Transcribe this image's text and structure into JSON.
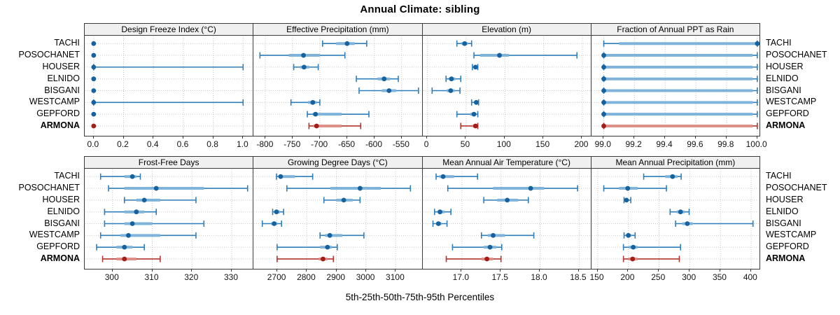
{
  "title": "Annual Climate: sibling",
  "caption": "5th-25th-50th-75th-95th Percentiles",
  "colors": {
    "normal_line": "#2e7ebc",
    "normal_band": "#7fb3d9",
    "normal_dot": "#16629f",
    "highlight_line": "#b5332b",
    "highlight_band": "#dd9089",
    "highlight_dot": "#a21f18",
    "grid": "#c8c8c8",
    "border": "#3a3a3a",
    "strip_bg": "#f0f0f0"
  },
  "chart_data": {
    "type": "dotplot-percentiles",
    "percentile_labels": [
      "5th",
      "25th",
      "50th",
      "75th",
      "95th"
    ],
    "rows": [
      "TACHI",
      "POSOCHANET",
      "HOUSER",
      "ELNIDO",
      "BISGANI",
      "WESTCAMP",
      "GEPFORD",
      "ARMONA"
    ],
    "highlight_row": "ARMONA",
    "legend_position": "none",
    "grid": "dotted",
    "panels": [
      {
        "title": "Design Freeze Index (°C)",
        "xlim": [
          -0.06,
          1.07
        ],
        "ticks": [
          0,
          0.2,
          0.4,
          0.6,
          0.8,
          1.0
        ],
        "tick_labels": [
          "0.0",
          "0.2",
          "0.4",
          "0.6",
          "0.8",
          "1.0"
        ],
        "series": [
          [
            0,
            0,
            0,
            0,
            0
          ],
          [
            0,
            0,
            0,
            0,
            0
          ],
          [
            0,
            0,
            0,
            0,
            1.0
          ],
          [
            0,
            0,
            0,
            0,
            0
          ],
          [
            0,
            0,
            0,
            0,
            0
          ],
          [
            0,
            0,
            0,
            0,
            1.0
          ],
          [
            0,
            0,
            0,
            0,
            0
          ],
          [
            0,
            0,
            0,
            0,
            0
          ]
        ]
      },
      {
        "title": "Effective Precipitation (mm)",
        "xlim": [
          -822,
          -512
        ],
        "ticks": [
          -800,
          -750,
          -700,
          -650,
          -600,
          -550
        ],
        "tick_labels": [
          "-800",
          "-750",
          "-700",
          "-650",
          "-600",
          "-550"
        ],
        "series": [
          [
            -695,
            -670,
            -650,
            -636,
            -614
          ],
          [
            -810,
            -757,
            -730,
            -700,
            -654
          ],
          [
            -748,
            -736,
            -729,
            -719,
            -703
          ],
          [
            -633,
            -594,
            -582,
            -571,
            -556
          ],
          [
            -628,
            -586,
            -573,
            -560,
            -519
          ],
          [
            -753,
            -722,
            -713,
            -706,
            -700
          ],
          [
            -723,
            -713,
            -708,
            -660,
            -610
          ],
          [
            -720,
            -712,
            -706,
            -660,
            -625
          ]
        ]
      },
      {
        "title": "Elevation (m)",
        "xlim": [
          -6,
          212
        ],
        "ticks": [
          0,
          50,
          100,
          150,
          200
        ],
        "tick_labels": [
          "0",
          "50",
          "100",
          "150",
          "200"
        ],
        "series": [
          [
            38,
            44,
            48,
            52,
            57
          ],
          [
            60,
            68,
            93,
            105,
            193
          ],
          [
            58,
            61,
            62,
            63,
            65
          ],
          [
            24,
            28,
            31,
            36,
            43
          ],
          [
            6,
            25,
            30,
            35,
            42
          ],
          [
            57,
            61,
            63,
            64,
            66
          ],
          [
            38,
            55,
            60,
            63,
            65
          ],
          [
            43,
            58,
            62,
            63,
            65
          ]
        ]
      },
      {
        "title": "Fraction of Annual PPT as Rain",
        "xlim": [
          98.92,
          100.02
        ],
        "ticks": [
          99.0,
          99.2,
          99.4,
          99.6,
          99.8,
          100.0
        ],
        "tick_labels": [
          "99.0",
          "99.2",
          "99.4",
          "99.6",
          "99.8",
          "100.0"
        ],
        "series": [
          [
            99.0,
            99.1,
            100.0,
            100.0,
            100.0
          ],
          [
            99.0,
            99.0,
            99.0,
            99.97,
            100.0
          ],
          [
            99.0,
            99.0,
            99.0,
            99.97,
            100.0
          ],
          [
            99.0,
            99.0,
            99.0,
            99.97,
            100.0
          ],
          [
            99.0,
            99.0,
            99.0,
            99.97,
            100.0
          ],
          [
            99.0,
            99.0,
            99.0,
            99.97,
            100.0
          ],
          [
            99.0,
            99.0,
            99.0,
            99.97,
            100.0
          ],
          [
            99.0,
            99.0,
            99.0,
            99.97,
            100.0
          ]
        ]
      },
      {
        "title": "Frost-Free Days",
        "xlim": [
          293,
          335.5
        ],
        "ticks": [
          300,
          310,
          320,
          330
        ],
        "tick_labels": [
          "300",
          "310",
          "320",
          "330"
        ],
        "series": [
          [
            297,
            303,
            305,
            306,
            307
          ],
          [
            299,
            303,
            311,
            323,
            334
          ],
          [
            303,
            306,
            308,
            312,
            321
          ],
          [
            298,
            303,
            306,
            308,
            311
          ],
          [
            298,
            303,
            305,
            310,
            323
          ],
          [
            297,
            302,
            304,
            312,
            321
          ],
          [
            296,
            301,
            303,
            305,
            308
          ],
          [
            297.5,
            301,
            303,
            306,
            312
          ]
        ]
      },
      {
        "title": "Growing Degree Days (°C)",
        "xlim": [
          2620,
          3190
        ],
        "ticks": [
          2700,
          2800,
          2900,
          3000,
          3100
        ],
        "tick_labels": [
          "2700",
          "2800",
          "2900",
          "3000",
          "3100"
        ],
        "series": [
          [
            2698,
            2705,
            2712,
            2760,
            2820
          ],
          [
            2733,
            2880,
            2980,
            3050,
            3150
          ],
          [
            2858,
            2900,
            2925,
            2955,
            2980
          ],
          [
            2685,
            2692,
            2698,
            2710,
            2722
          ],
          [
            2650,
            2680,
            2690,
            2700,
            2715
          ],
          [
            2845,
            2862,
            2878,
            2920,
            2993
          ],
          [
            2700,
            2845,
            2870,
            2885,
            2903
          ],
          [
            2700,
            2840,
            2855,
            2870,
            2890
          ]
        ]
      },
      {
        "title": "Mean Annual Air Temperature (°C)",
        "xlim": [
          16.5,
          18.66
        ],
        "ticks": [
          17.0,
          17.5,
          18.0,
          18.5
        ],
        "tick_labels": [
          "17.0",
          "17.5",
          "18.0",
          "18.5"
        ],
        "series": [
          [
            16.67,
            16.71,
            16.76,
            16.9,
            17.2
          ],
          [
            16.82,
            17.4,
            17.88,
            18.05,
            18.48
          ],
          [
            17.28,
            17.45,
            17.58,
            17.72,
            17.85
          ],
          [
            16.65,
            16.69,
            16.72,
            16.78,
            16.86
          ],
          [
            16.63,
            16.67,
            16.7,
            16.74,
            16.81
          ],
          [
            17.25,
            17.33,
            17.4,
            17.55,
            17.92
          ],
          [
            16.88,
            17.28,
            17.36,
            17.44,
            17.51
          ],
          [
            16.8,
            17.25,
            17.32,
            17.4,
            17.5
          ]
        ]
      },
      {
        "title": "Mean Annual Precipitation (mm)",
        "xlim": [
          140,
          415
        ],
        "ticks": [
          150,
          200,
          250,
          300,
          350,
          400
        ],
        "tick_labels": [
          "150",
          "200",
          "250",
          "300",
          "350",
          "400"
        ],
        "series": [
          [
            225,
            260,
            272,
            280,
            286
          ],
          [
            160,
            185,
            199,
            215,
            262
          ],
          [
            193,
            195,
            197,
            200,
            204
          ],
          [
            268,
            279,
            285,
            292,
            299
          ],
          [
            277,
            288,
            296,
            305,
            403
          ],
          [
            193,
            197,
            200,
            205,
            211
          ],
          [
            192,
            201,
            208,
            215,
            285
          ],
          [
            192,
            200,
            207,
            215,
            283
          ]
        ]
      }
    ]
  }
}
